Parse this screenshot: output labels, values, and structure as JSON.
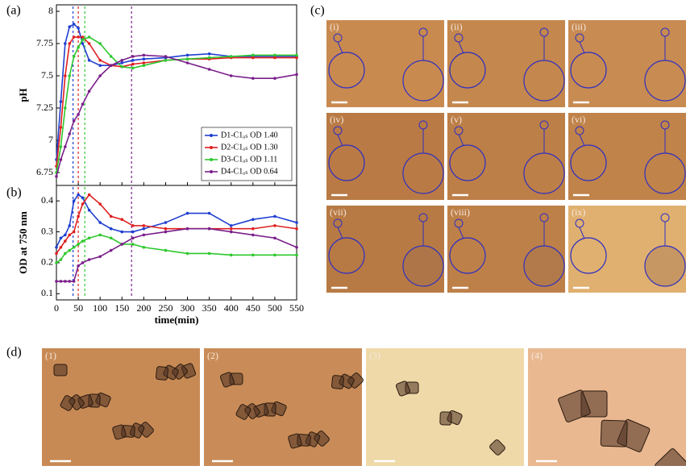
{
  "chart_data": [
    {
      "type": "line",
      "label": "(a)",
      "ylabel": "pH",
      "xlim": [
        0,
        550
      ],
      "xticks": [
        0,
        50,
        100,
        150,
        200,
        250,
        300,
        350,
        400,
        450,
        500,
        550
      ],
      "show_xtick_labels": false,
      "ylim": [
        6.65,
        8.05
      ],
      "yticks": [
        6.75,
        7,
        7.25,
        7.5,
        7.75,
        8
      ],
      "legend": "lower right",
      "vlines": [
        {
          "x": 38,
          "color": "#1f3fd0"
        },
        {
          "x": 50,
          "color": "#e02020"
        },
        {
          "x": 65,
          "color": "#2ec82e"
        },
        {
          "x": 172,
          "color": "#7a1f8a"
        }
      ],
      "x": [
        0,
        10,
        20,
        30,
        40,
        50,
        60,
        75,
        100,
        125,
        150,
        175,
        200,
        250,
        300,
        350,
        400,
        450,
        500,
        550
      ],
      "series": [
        {
          "name": "D1-C1ₐₛ OD 1.40",
          "color": "#1f3fd0",
          "values": [
            6.85,
            7.3,
            7.75,
            7.88,
            7.9,
            7.87,
            7.75,
            7.62,
            7.58,
            7.58,
            7.6,
            7.62,
            7.63,
            7.64,
            7.66,
            7.67,
            7.65,
            7.65,
            7.65,
            7.65
          ]
        },
        {
          "name": "D2-C1ₐₛ OD 1.30",
          "color": "#e02020",
          "values": [
            6.8,
            7.1,
            7.5,
            7.75,
            7.8,
            7.8,
            7.8,
            7.75,
            7.62,
            7.58,
            7.57,
            7.59,
            7.6,
            7.62,
            7.63,
            7.63,
            7.64,
            7.64,
            7.64,
            7.64
          ]
        },
        {
          "name": "D3-C1ₐₛ OD 1.11",
          "color": "#2ec82e",
          "values": [
            6.75,
            6.95,
            7.25,
            7.5,
            7.65,
            7.72,
            7.78,
            7.8,
            7.75,
            7.65,
            7.57,
            7.56,
            7.58,
            7.62,
            7.63,
            7.64,
            7.65,
            7.66,
            7.66,
            7.66
          ]
        },
        {
          "name": "D4-C1ₐₛ OD 0.64",
          "color": "#7a1f8a",
          "values": [
            6.72,
            6.85,
            6.95,
            7.05,
            7.15,
            7.2,
            7.28,
            7.38,
            7.5,
            7.58,
            7.62,
            7.65,
            7.66,
            7.65,
            7.6,
            7.55,
            7.5,
            7.48,
            7.48,
            7.51
          ]
        }
      ]
    },
    {
      "type": "line",
      "label": "(b)",
      "ylabel": "OD at 750 nm",
      "xlabel": "time(min)",
      "xlim": [
        0,
        550
      ],
      "xticks": [
        0,
        50,
        100,
        150,
        200,
        250,
        300,
        350,
        400,
        450,
        500,
        550
      ],
      "show_xtick_labels": true,
      "ylim": [
        0.08,
        0.45
      ],
      "yticks": [
        0.1,
        0.2,
        0.3,
        0.4
      ],
      "vlines": [
        {
          "x": 38,
          "color": "#1f3fd0"
        },
        {
          "x": 50,
          "color": "#e02020"
        },
        {
          "x": 65,
          "color": "#2ec82e"
        },
        {
          "x": 172,
          "color": "#7a1f8a"
        }
      ],
      "x": [
        0,
        10,
        20,
        30,
        40,
        50,
        60,
        75,
        100,
        125,
        150,
        175,
        200,
        250,
        300,
        350,
        400,
        450,
        500,
        550
      ],
      "series": [
        {
          "name": "D1-C1ₐₛ OD 1.40",
          "color": "#1f3fd0",
          "values": [
            0.25,
            0.28,
            0.29,
            0.32,
            0.4,
            0.42,
            0.41,
            0.37,
            0.33,
            0.31,
            0.3,
            0.3,
            0.31,
            0.33,
            0.36,
            0.36,
            0.32,
            0.34,
            0.35,
            0.33
          ]
        },
        {
          "name": "D2-C1ₐₛ OD 1.30",
          "color": "#e02020",
          "values": [
            0.23,
            0.25,
            0.27,
            0.29,
            0.3,
            0.35,
            0.39,
            0.42,
            0.39,
            0.35,
            0.34,
            0.32,
            0.32,
            0.31,
            0.31,
            0.31,
            0.31,
            0.31,
            0.32,
            0.31
          ]
        },
        {
          "name": "D3-C1ₐₛ OD 1.11",
          "color": "#2ec82e",
          "values": [
            0.2,
            0.21,
            0.23,
            0.24,
            0.25,
            0.26,
            0.27,
            0.28,
            0.29,
            0.28,
            0.26,
            0.26,
            0.25,
            0.24,
            0.23,
            0.23,
            0.225,
            0.225,
            0.225,
            0.225
          ]
        },
        {
          "name": "D4-C1ₐₛ OD 0.64",
          "color": "#7a1f8a",
          "values": [
            0.14,
            0.14,
            0.14,
            0.14,
            0.14,
            0.19,
            0.2,
            0.21,
            0.22,
            0.24,
            0.26,
            0.28,
            0.29,
            0.3,
            0.31,
            0.31,
            0.3,
            0.29,
            0.28,
            0.25
          ]
        }
      ]
    }
  ],
  "figure": {
    "label_c": "(c)",
    "label_d": "(d)",
    "panels_c": [
      "(i)",
      "(ii)",
      "(iii)",
      "(iv)",
      "(v)",
      "(vi)",
      "(vii)",
      "(viii)",
      "(ix)"
    ],
    "panels_d": [
      "(1)",
      "(2)",
      "(3)",
      "(4)"
    ]
  }
}
